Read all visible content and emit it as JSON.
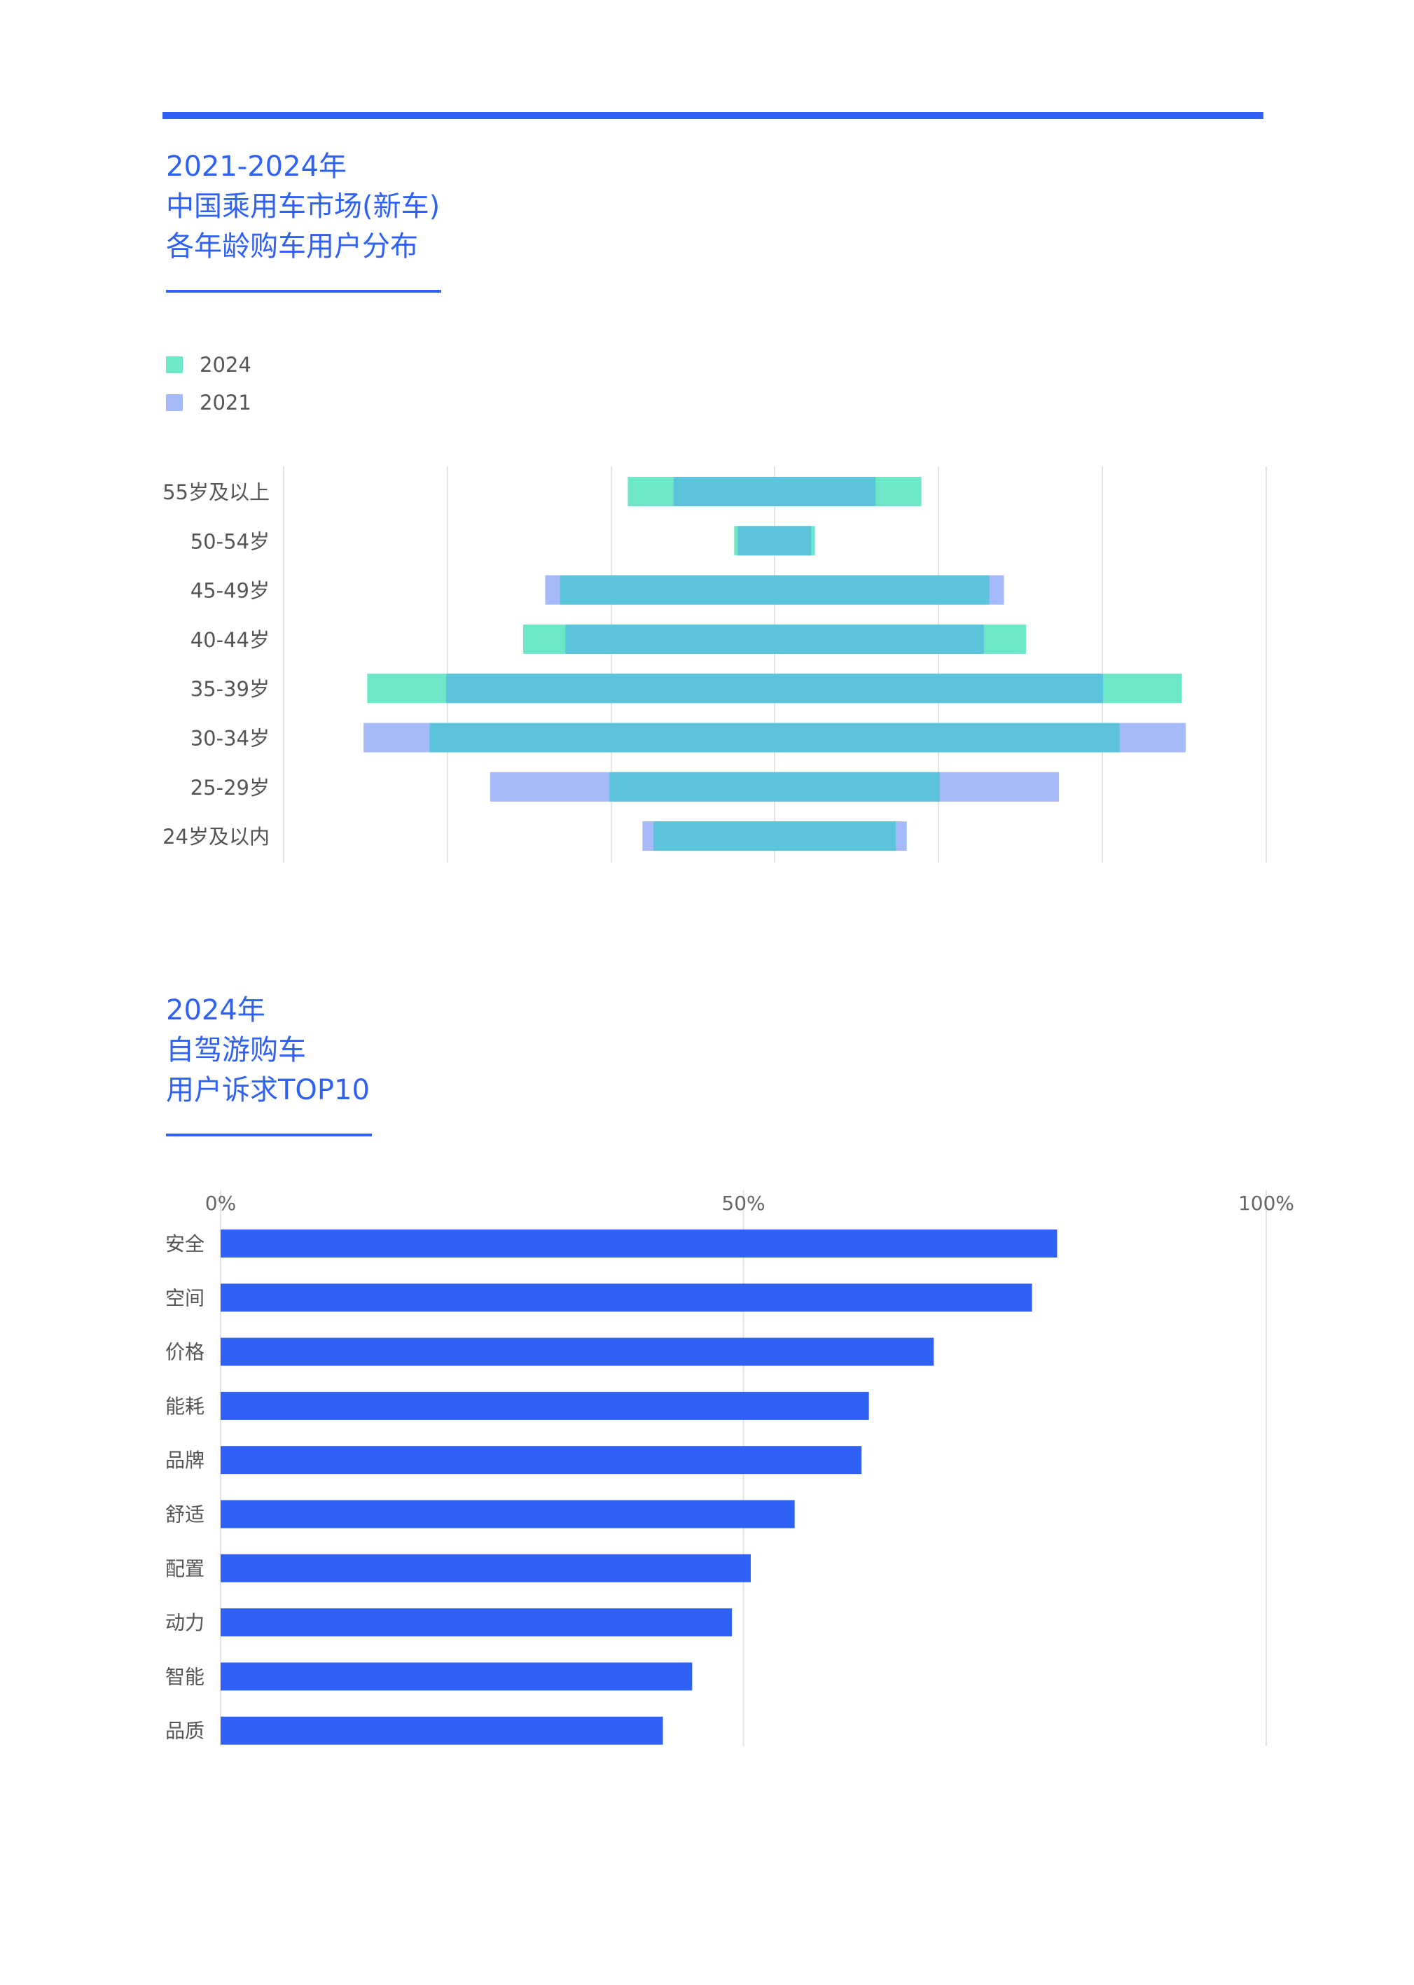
{
  "chart_data": [
    {
      "type": "bar",
      "title": [
        "2021-2024年",
        "中国乘用车市场(新车)",
        "各年龄购车用户分布"
      ],
      "categories": [
        "55岁及以上",
        "50-54岁",
        "45-49岁",
        "40-44岁",
        "35-39岁",
        "30-34岁",
        "25-29岁",
        "24岁及以内"
      ],
      "series": [
        {
          "name": "2024",
          "color": "#6ce8c8",
          "values": [
            8.0,
            2.2,
            11.7,
            13.7,
            22.2,
            18.8,
            9.0,
            6.6
          ]
        },
        {
          "name": "2021",
          "color": "#a6b9f9",
          "values": [
            5.5,
            2.0,
            12.5,
            11.4,
            17.9,
            22.4,
            15.5,
            7.2
          ]
        }
      ],
      "overlap_color": "#5bc3da",
      "layout": "population-pyramid (centered, symmetric bars)",
      "grid": true,
      "legend_position": "top-left"
    },
    {
      "type": "bar",
      "orientation": "horizontal",
      "title": [
        "2024年",
        "自驾游购车",
        "用户诉求TOP10"
      ],
      "categories": [
        "安全",
        "空间",
        "价格",
        "能耗",
        "品牌",
        "舒适",
        "配置",
        "动力",
        "智能",
        "品质"
      ],
      "values": [
        80.0,
        77.6,
        68.2,
        62.0,
        61.3,
        54.9,
        50.7,
        48.9,
        45.1,
        42.3
      ],
      "unit": "%",
      "xlim": [
        0,
        100
      ],
      "xticks": [
        "0%",
        "50%",
        "100%"
      ],
      "color": "#2f62f4",
      "grid": true
    }
  ]
}
